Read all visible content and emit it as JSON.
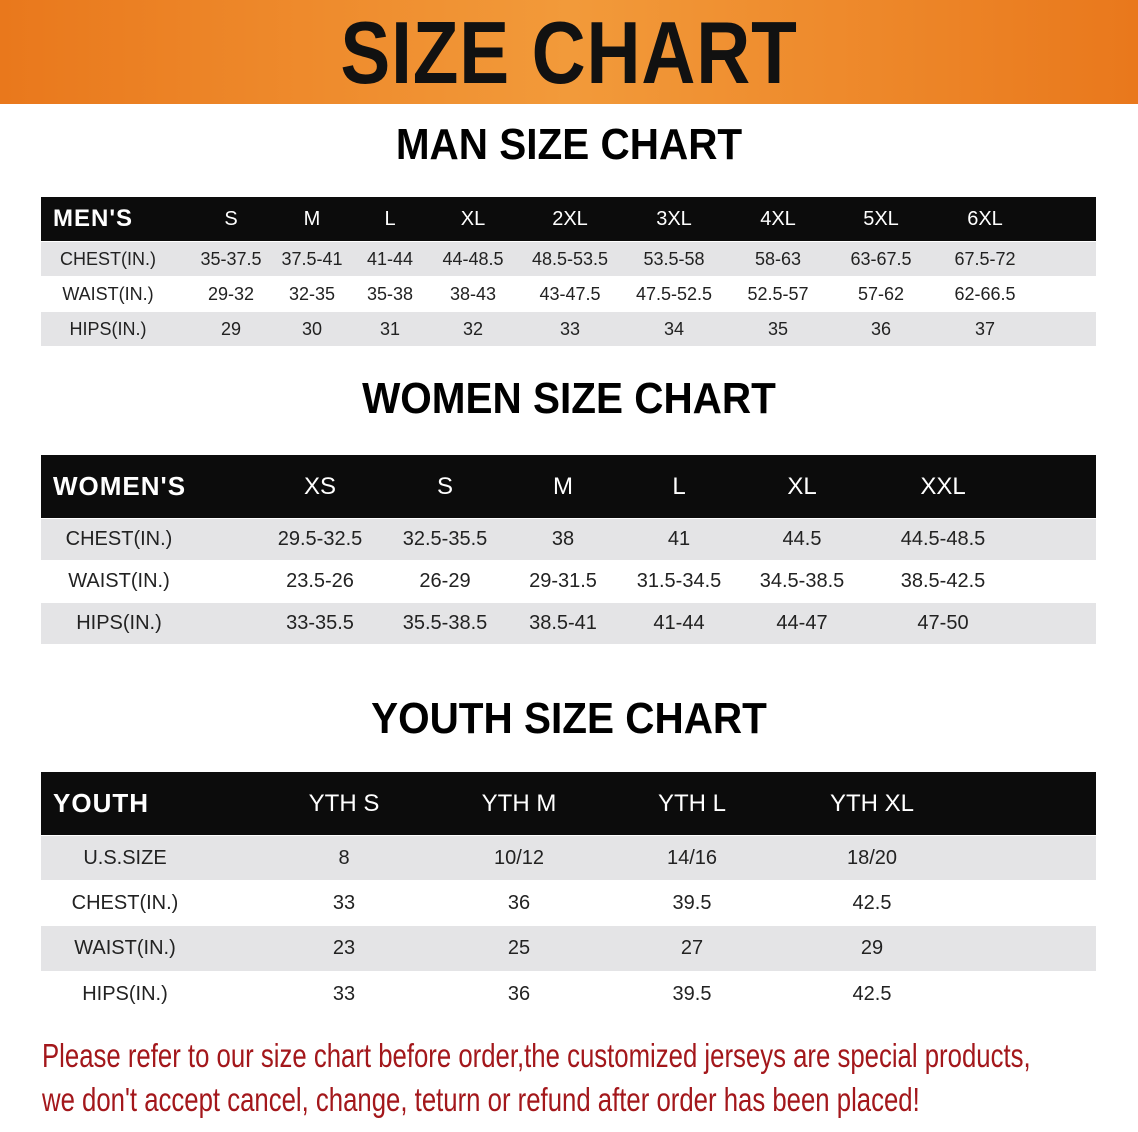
{
  "banner_title": "SIZE CHART",
  "colors": {
    "banner": "#e9781c",
    "header_row": "#0c0c0c",
    "stripe": "#e4e4e6",
    "notice": "#a3171b"
  },
  "men": {
    "title": "MAN SIZE CHART",
    "header": [
      "MEN'S",
      "S",
      "M",
      "L",
      "XL",
      "2XL",
      "3XL",
      "4XL",
      "5XL",
      "6XL"
    ],
    "rows": [
      [
        "CHEST(IN.)",
        "35-37.5",
        "37.5-41",
        "41-44",
        "44-48.5",
        "48.5-53.5",
        "53.5-58",
        "58-63",
        "63-67.5",
        "67.5-72"
      ],
      [
        "WAIST(IN.)",
        "29-32",
        "32-35",
        "35-38",
        "38-43",
        "43-47.5",
        "47.5-52.5",
        "52.5-57",
        "57-62",
        "62-66.5"
      ],
      [
        "HIPS(IN.)",
        "29",
        "30",
        "31",
        "32",
        "33",
        "34",
        "35",
        "36",
        "37"
      ]
    ]
  },
  "women": {
    "title": "WOMEN SIZE CHART",
    "header": [
      "WOMEN'S",
      "XS",
      "S",
      "M",
      "L",
      "XL",
      "XXL"
    ],
    "rows": [
      [
        "CHEST(IN.)",
        "29.5-32.5",
        "32.5-35.5",
        "38",
        "41",
        "44.5",
        "44.5-48.5"
      ],
      [
        "WAIST(IN.)",
        "23.5-26",
        "26-29",
        "29-31.5",
        "31.5-34.5",
        "34.5-38.5",
        "38.5-42.5"
      ],
      [
        "HIPS(IN.)",
        "33-35.5",
        "35.5-38.5",
        "38.5-41",
        "41-44",
        "44-47",
        "47-50"
      ]
    ]
  },
  "youth": {
    "title": "YOUTH SIZE CHART",
    "header": [
      "YOUTH",
      "YTH S",
      "YTH M",
      "YTH L",
      "YTH XL"
    ],
    "rows": [
      [
        "U.S.SIZE",
        "8",
        "10/12",
        "14/16",
        "18/20"
      ],
      [
        "CHEST(IN.)",
        "33",
        "36",
        "39.5",
        "42.5"
      ],
      [
        "WAIST(IN.)",
        "23",
        "25",
        "27",
        "29"
      ],
      [
        "HIPS(IN.)",
        "33",
        "36",
        "39.5",
        "42.5"
      ]
    ]
  },
  "notice": {
    "line1": "Please refer to our size chart before order,the customized jerseys are special products,",
    "line2": "we don't accept cancel, change, teturn or refund after order has been placed!"
  }
}
